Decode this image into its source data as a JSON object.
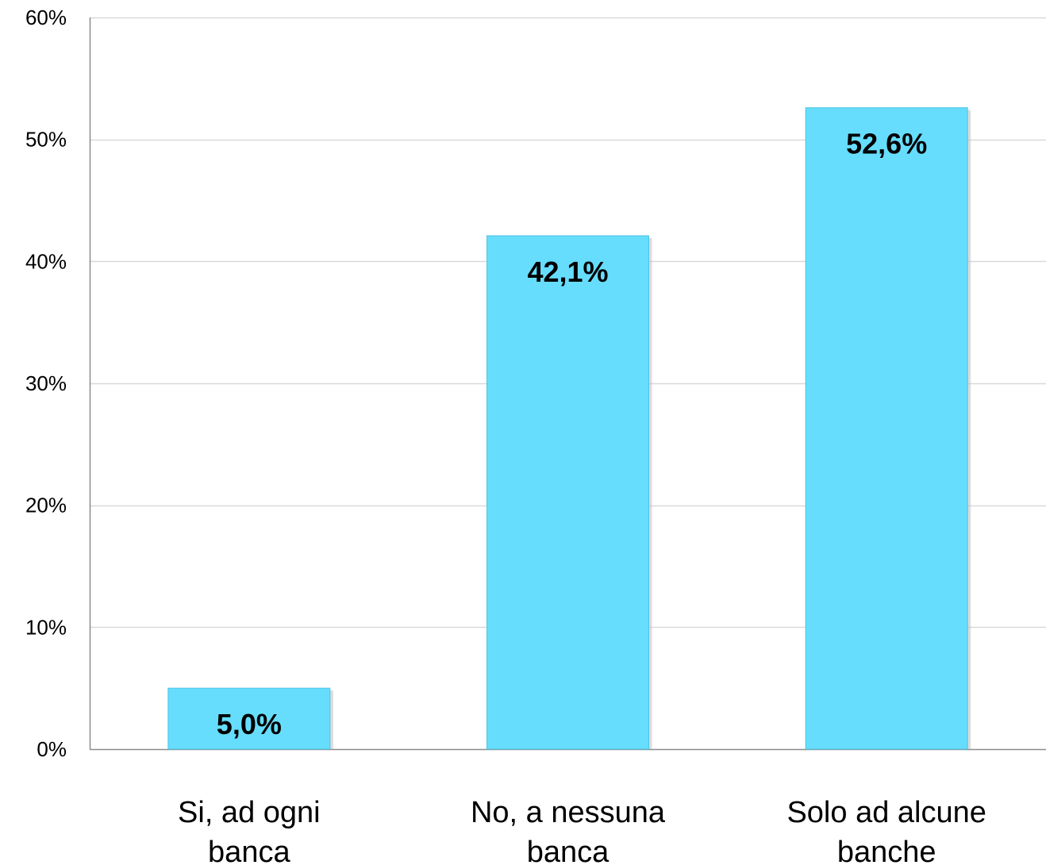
{
  "chart_data": {
    "type": "bar",
    "title": "",
    "xlabel": "",
    "ylabel": "",
    "categories": [
      [
        "Si, ad ogni",
        "banca"
      ],
      [
        "No, a nessuna",
        "banca"
      ],
      [
        "Solo ad alcune",
        "banche"
      ]
    ],
    "values": [
      5.0,
      42.1,
      52.6
    ],
    "data_labels": [
      "5,0%",
      "42,1%",
      "52,6%"
    ],
    "ylim": [
      0,
      60
    ],
    "yticks": [
      0,
      10,
      20,
      30,
      40,
      50,
      60
    ],
    "ytick_labels": [
      "0%",
      "10%",
      "20%",
      "30%",
      "40%",
      "50%",
      "60%"
    ],
    "grid": true,
    "legend": "none",
    "colors": {
      "bar_fill": "#66ddfc",
      "bar_stroke": "#4fc3e6",
      "grid": "#d9d9d9",
      "axis": "#8c8c8c",
      "shadow": "#bfbfbf"
    }
  }
}
